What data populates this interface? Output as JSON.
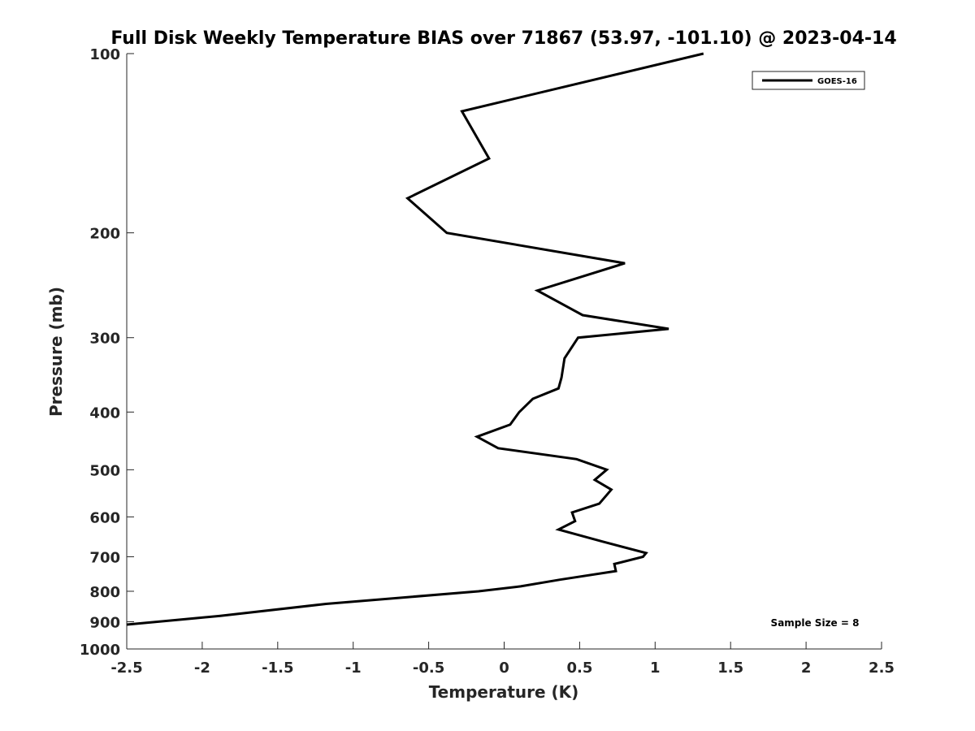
{
  "chart_data": {
    "type": "line",
    "title": "Full Disk Weekly Temperature BIAS over 71867 (53.97, -101.10) @ 2023-04-14",
    "xlabel": "Temperature (K)",
    "ylabel": "Pressure (mb)",
    "xlim": [
      -2.5,
      2.5
    ],
    "ylim": [
      100,
      1000
    ],
    "y_scale": "log",
    "y_reversed": true,
    "grid": false,
    "xticks": [
      -2.5,
      -2,
      -1.5,
      -1,
      -0.5,
      0,
      0.5,
      1,
      1.5,
      2,
      2.5
    ],
    "xtick_labels": [
      "-2.5",
      "-2",
      "-1.5",
      "-1",
      "-0.5",
      "0",
      "0.5",
      "1",
      "1.5",
      "2",
      "2.5"
    ],
    "yticks": [
      100,
      200,
      300,
      400,
      500,
      600,
      700,
      800,
      900,
      1000
    ],
    "ytick_labels": [
      "100",
      "200",
      "300",
      "400",
      "500",
      "600",
      "700",
      "800",
      "900",
      "1000"
    ],
    "legend_position": "top-right",
    "series": [
      {
        "name": "GOES-16",
        "color": "#000000",
        "points": [
          [
            1.32,
            100
          ],
          [
            -0.28,
            125
          ],
          [
            -0.1,
            150
          ],
          [
            -0.64,
            175
          ],
          [
            -0.38,
            200
          ],
          [
            0.8,
            225
          ],
          [
            0.22,
            250
          ],
          [
            0.52,
            275
          ],
          [
            1.09,
            290
          ],
          [
            0.49,
            300
          ],
          [
            0.4,
            325
          ],
          [
            0.38,
            350
          ],
          [
            0.36,
            365
          ],
          [
            0.19,
            380
          ],
          [
            0.1,
            400
          ],
          [
            0.04,
            420
          ],
          [
            -0.18,
            440
          ],
          [
            -0.04,
            460
          ],
          [
            0.48,
            480
          ],
          [
            0.68,
            500
          ],
          [
            0.6,
            520
          ],
          [
            0.71,
            540
          ],
          [
            0.63,
            570
          ],
          [
            0.45,
            590
          ],
          [
            0.47,
            610
          ],
          [
            0.36,
            630
          ],
          [
            0.65,
            660
          ],
          [
            0.94,
            690
          ],
          [
            0.92,
            700
          ],
          [
            0.73,
            720
          ],
          [
            0.74,
            740
          ],
          [
            0.37,
            765
          ],
          [
            0.11,
            785
          ],
          [
            -0.17,
            800
          ],
          [
            -1.18,
            840
          ],
          [
            -1.88,
            880
          ],
          [
            -2.5,
            910
          ]
        ]
      }
    ],
    "annotations": [
      {
        "text": "Sample Size = 8",
        "position": "bottom-right"
      }
    ]
  }
}
